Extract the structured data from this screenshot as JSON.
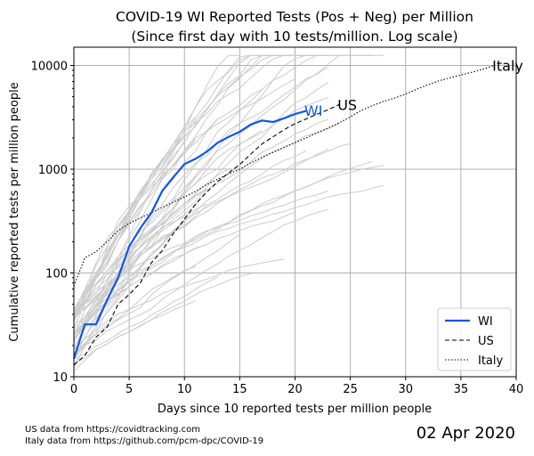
{
  "chart_data": {
    "type": "line",
    "title": "COVID-19 WI Reported Tests (Pos + Neg) per Million",
    "subtitle": "(Since first day with 10 tests/million. Log scale)",
    "xlabel": "Days since 10 reported tests per million people",
    "ylabel": "Cumulative reported tests per million people",
    "xlim": [
      0,
      40
    ],
    "ylim": [
      10,
      15000
    ],
    "yscale": "log",
    "xticks": [
      0,
      5,
      10,
      15,
      20,
      25,
      30,
      35,
      40
    ],
    "xtick_labels": [
      "0",
      "5",
      "10",
      "15",
      "20",
      "25",
      "30",
      "35",
      "40"
    ],
    "yticks": [
      10,
      100,
      1000,
      10000
    ],
    "ytick_labels": [
      "10",
      "100",
      "1000",
      "10000"
    ],
    "grid": true,
    "legend": {
      "placement": "lower-right",
      "entries": [
        {
          "label": "WI",
          "color": "#1155ee",
          "style": "solid"
        },
        {
          "label": "US",
          "color": "#000000",
          "style": "dashed"
        },
        {
          "label": "Italy",
          "color": "#000000",
          "style": "dotted"
        }
      ]
    },
    "series": [
      {
        "name": "WI",
        "color": "#1155ee",
        "style": "solid",
        "x": [
          0,
          1,
          2,
          3,
          4,
          5,
          6,
          7,
          8,
          9,
          10,
          11,
          12,
          13,
          14,
          15,
          16,
          17,
          18,
          19,
          20,
          21
        ],
        "y": [
          15,
          32,
          32,
          55,
          90,
          180,
          270,
          380,
          620,
          840,
          1120,
          1260,
          1470,
          1800,
          2050,
          2300,
          2700,
          2950,
          2850,
          3100,
          3400,
          3650
        ]
      },
      {
        "name": "US",
        "color": "#000000",
        "style": "dashed",
        "x": [
          0,
          1,
          2,
          3,
          4,
          5,
          6,
          7,
          8,
          9,
          10,
          11,
          12,
          13,
          14,
          15,
          16,
          17,
          18,
          19,
          20,
          21,
          22,
          23,
          24
        ],
        "y": [
          13,
          16,
          24,
          30,
          50,
          62,
          80,
          125,
          165,
          240,
          330,
          460,
          600,
          760,
          920,
          1110,
          1400,
          1750,
          2050,
          2400,
          2750,
          3050,
          3400,
          3750,
          4200
        ]
      },
      {
        "name": "Italy",
        "color": "#000000",
        "style": "dotted",
        "x": [
          0,
          1,
          2,
          3,
          4,
          5,
          6,
          7,
          8,
          9,
          10,
          11,
          12,
          13,
          14,
          15,
          16,
          17,
          18,
          19,
          20,
          21,
          22,
          23,
          24,
          25,
          26,
          27,
          28,
          29,
          30,
          31,
          32,
          33,
          34,
          35,
          36,
          37,
          38
        ],
        "y": [
          75,
          140,
          160,
          200,
          255,
          300,
          340,
          380,
          430,
          480,
          540,
          610,
          710,
          800,
          900,
          1000,
          1150,
          1300,
          1450,
          1620,
          1800,
          2000,
          2250,
          2500,
          2800,
          3200,
          3700,
          4100,
          4500,
          4850,
          5300,
          5900,
          6500,
          7100,
          7600,
          8100,
          8600,
          9200,
          10000
        ]
      }
    ],
    "background_series_color": "#cccccc",
    "annotations": [
      {
        "text": "WI",
        "color": "#1155ee",
        "x": 21,
        "y": 3700
      },
      {
        "text": "US",
        "color": "#000000",
        "x": 24,
        "y": 4200
      },
      {
        "text": "Italy",
        "color": "#000000",
        "x": 38,
        "y": 10000
      }
    ]
  },
  "footer": {
    "line1": "US data from https://covidtracking.com",
    "line2": "Italy data from https://github.com/pcm-dpc/COVID-19",
    "date": "02 Apr 2020"
  }
}
